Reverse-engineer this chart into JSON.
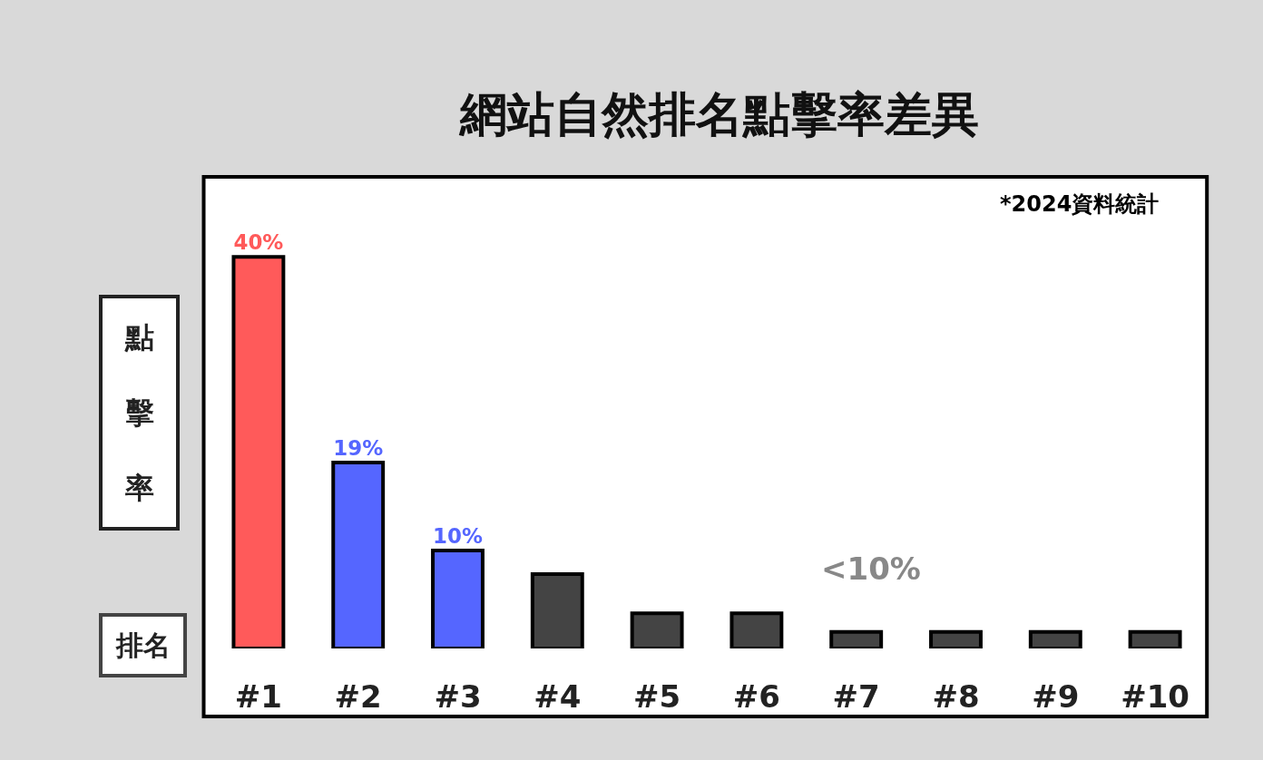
{
  "chart_data": {
    "type": "bar",
    "title": "網站自然排名點擊率差異",
    "xlabel": "排名",
    "ylabel": "點擊率",
    "categories": [
      "#1",
      "#2",
      "#3",
      "#4",
      "#5",
      "#6",
      "#7",
      "#8",
      "#9",
      "#10"
    ],
    "values": [
      40,
      19,
      10,
      7.6,
      3.6,
      3.6,
      1.7,
      1.7,
      1.7,
      1.7
    ],
    "colors": [
      "#ff5a5a",
      "#5566ff",
      "#5566ff",
      "#444444",
      "#444444",
      "#444444",
      "#444444",
      "#444444",
      "#444444",
      "#444444"
    ],
    "value_labels": [
      "40%",
      "19%",
      "10%",
      null,
      null,
      null,
      null,
      null,
      null,
      null
    ],
    "annotations": [
      "*2024資料統計",
      "<10%"
    ]
  }
}
